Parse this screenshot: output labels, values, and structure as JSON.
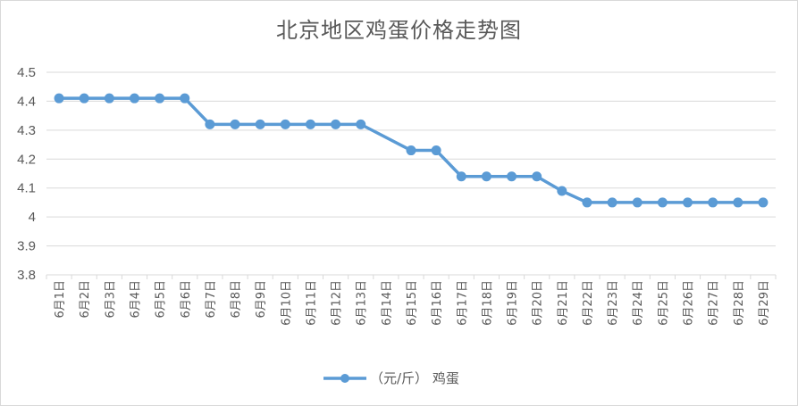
{
  "chart_data": {
    "type": "line",
    "title": "北京地区鸡蛋价格走势图",
    "xlabel": "",
    "ylabel": "",
    "categories": [
      "6月1日",
      "6月2日",
      "6月3日",
      "6月4日",
      "6月5日",
      "6月6日",
      "6月7日",
      "6月8日",
      "6月9日",
      "6月10日",
      "6月11日",
      "6月12日",
      "6月13日",
      "6月14日",
      "6月15日",
      "6月16日",
      "6月17日",
      "6月18日",
      "6月19日",
      "6月20日",
      "6月21日",
      "6月22日",
      "6月23日",
      "6月24日",
      "6月25日",
      "6月26日",
      "6月27日",
      "6月28日",
      "6月29日"
    ],
    "series": [
      {
        "name": "（元/斤） 鸡蛋",
        "values": [
          4.41,
          4.41,
          4.41,
          4.41,
          4.41,
          4.41,
          4.32,
          4.32,
          4.32,
          4.32,
          4.32,
          4.32,
          4.32,
          null,
          4.23,
          4.23,
          4.14,
          4.14,
          4.14,
          4.14,
          4.09,
          4.05,
          4.05,
          4.05,
          4.05,
          4.05,
          4.05,
          4.05,
          4.05
        ],
        "color": "#5b9bd5"
      }
    ],
    "yticks": [
      "3.8",
      "3.9",
      "4",
      "4.1",
      "4.2",
      "4.3",
      "4.4",
      "4.5"
    ],
    "ylim": [
      3.8,
      4.5
    ],
    "grid": true,
    "legend": "bottom"
  }
}
